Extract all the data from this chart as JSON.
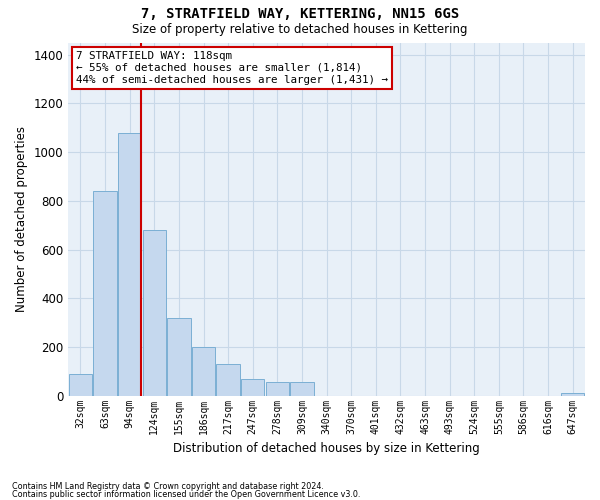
{
  "title": "7, STRATFIELD WAY, KETTERING, NN15 6GS",
  "subtitle": "Size of property relative to detached houses in Kettering",
  "xlabel": "Distribution of detached houses by size in Kettering",
  "ylabel": "Number of detached properties",
  "categories": [
    "32sqm",
    "63sqm",
    "94sqm",
    "124sqm",
    "155sqm",
    "186sqm",
    "217sqm",
    "247sqm",
    "278sqm",
    "309sqm",
    "340sqm",
    "370sqm",
    "401sqm",
    "432sqm",
    "463sqm",
    "493sqm",
    "524sqm",
    "555sqm",
    "586sqm",
    "616sqm",
    "647sqm"
  ],
  "values": [
    90,
    840,
    1080,
    680,
    320,
    200,
    130,
    70,
    55,
    55,
    0,
    0,
    0,
    0,
    0,
    0,
    0,
    0,
    0,
    0,
    10
  ],
  "bar_color": "#c5d8ee",
  "bar_edge_color": "#7bafd4",
  "grid_color": "#c8d8e8",
  "background_color": "#e8f0f8",
  "vline_color": "#cc0000",
  "annotation_text": "7 STRATFIELD WAY: 118sqm\n← 55% of detached houses are smaller (1,814)\n44% of semi-detached houses are larger (1,431) →",
  "annotation_box_color": "white",
  "annotation_border_color": "#cc0000",
  "ylim": [
    0,
    1450
  ],
  "yticks": [
    0,
    200,
    400,
    600,
    800,
    1000,
    1200,
    1400
  ],
  "vline_bar_index": 2,
  "footer_line1": "Contains HM Land Registry data © Crown copyright and database right 2024.",
  "footer_line2": "Contains public sector information licensed under the Open Government Licence v3.0."
}
